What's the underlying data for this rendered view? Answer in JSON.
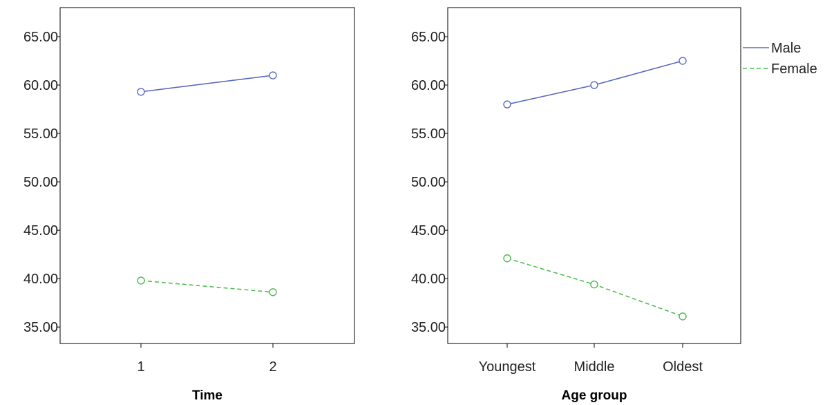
{
  "chart_data": [
    {
      "type": "line",
      "xlabel": "Time",
      "ylabel": "",
      "categories": [
        "1",
        "2"
      ],
      "ylim": [
        33.3,
        68.0
      ],
      "yticks": [
        "35.00",
        "40.00",
        "45.00",
        "50.00",
        "55.00",
        "60.00",
        "65.00"
      ],
      "grid": false,
      "series": [
        {
          "name": "Male",
          "values": [
            59.3,
            61.0
          ],
          "color": "#5b6bbf",
          "dash": "solid"
        },
        {
          "name": "Female",
          "values": [
            39.8,
            38.6
          ],
          "color": "#4cbb4c",
          "dash": "dashed"
        }
      ]
    },
    {
      "type": "line",
      "xlabel": "Age group",
      "ylabel": "",
      "categories": [
        "Youngest",
        "Middle",
        "Oldest"
      ],
      "ylim": [
        33.3,
        68.0
      ],
      "yticks": [
        "35.00",
        "40.00",
        "45.00",
        "50.00",
        "55.00",
        "60.00",
        "65.00"
      ],
      "grid": false,
      "series": [
        {
          "name": "Male",
          "values": [
            58.0,
            60.0,
            62.5
          ],
          "color": "#5b6bbf",
          "dash": "solid"
        },
        {
          "name": "Female",
          "values": [
            42.1,
            39.4,
            36.1
          ],
          "color": "#4cbb4c",
          "dash": "dashed"
        }
      ]
    }
  ],
  "legend": {
    "placement": "top-right",
    "items": [
      {
        "label": "Male",
        "color": "#5b6bbf",
        "dash": "solid"
      },
      {
        "label": "Female",
        "color": "#4cbb4c",
        "dash": "dashed"
      }
    ]
  }
}
